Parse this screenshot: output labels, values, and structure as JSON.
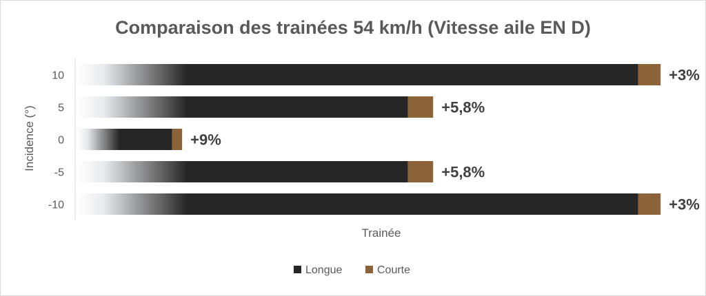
{
  "chart_data": {
    "type": "bar",
    "orientation": "horizontal",
    "stacked": true,
    "title": "Comparaison des trainées 54 km/h (Vitesse aile EN D)",
    "xlabel": "Trainée",
    "ylabel": "Incidence (°)",
    "categories": [
      "10",
      "5",
      "0",
      "-5",
      "-10"
    ],
    "series": [
      {
        "name": "Longue",
        "color": "#262626",
        "values": [
          100,
          59,
          17,
          59,
          100
        ]
      },
      {
        "name": "Courte",
        "color": "#8c6239",
        "values": [
          4,
          4.5,
          1.8,
          4.5,
          4
        ]
      }
    ],
    "data_labels": [
      "+3%",
      "+5,8%",
      "+9%",
      "+5,8%",
      "+3%"
    ],
    "xlim": [
      0,
      110
    ],
    "grid": false,
    "legend": "bottom",
    "x_tick_labels_visible": false
  }
}
